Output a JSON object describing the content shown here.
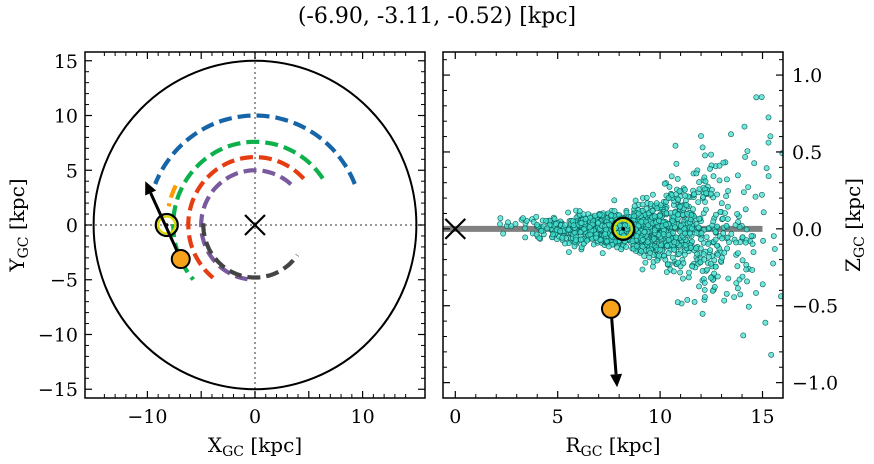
{
  "title": "(-6.90, -3.11, -0.52) [kpc]",
  "chart_data": [
    {
      "type": "line",
      "panel": "left",
      "xlabel": "X_GC [kpc]",
      "ylabel": "Y_GC [kpc]",
      "xlim": [
        -15.8,
        15.8
      ],
      "ylim": [
        -15.8,
        15.8
      ],
      "xticks": [
        -10,
        -5,
        0,
        5,
        10
      ],
      "yticks": [
        -15,
        -10,
        -5,
        0,
        5,
        10,
        15
      ],
      "xtick_labels": [
        "−10",
        "0",
        "10"
      ],
      "xtick_label_values": [
        -10,
        0,
        10
      ],
      "ytick_labels": [
        "−15",
        "−10",
        "−5",
        "0",
        "5",
        "10",
        "15"
      ],
      "boundary_circle_radius": 15,
      "galactic_center": [
        0,
        0
      ],
      "sun": [
        -8.2,
        0
      ],
      "object": [
        -6.9,
        -3.11
      ],
      "velocity_arrow_end": [
        -10.2,
        4.0
      ],
      "spiral_arms": [
        {
          "color": "#1565a8",
          "r": 10.0,
          "theta_deg": [
            22,
            158
          ]
        },
        {
          "color": "#0db14b",
          "r": 7.6,
          "theta_deg": [
            34,
            221
          ]
        },
        {
          "color": "#e63c12",
          "r": 6.2,
          "theta_deg": [
            43,
            231
          ]
        },
        {
          "color": "#ff9a00",
          "r": 8.2,
          "theta_deg": [
            154,
            168
          ]
        },
        {
          "color": "#7a5a9e",
          "r": 5.0,
          "theta_deg": [
            48,
            262
          ]
        },
        {
          "color": "#444444",
          "r": 4.8,
          "theta_deg": [
            178,
            325
          ]
        }
      ],
      "grid": false
    },
    {
      "type": "scatter",
      "panel": "right",
      "xlabel": "R_GC [kpc]",
      "ylabel": "Z_GC [kpc]",
      "xlim": [
        -0.6,
        16
      ],
      "ylim": [
        -1.1,
        1.15
      ],
      "xticks": [
        0,
        5,
        10,
        15
      ],
      "yticks": [
        -1.0,
        -0.5,
        0.0,
        0.5,
        1.0
      ],
      "ytick_labels": [
        "−1.0",
        "−0.5",
        "0.0",
        "0.5",
        "1.0"
      ],
      "disk_line": {
        "x": [
          -0.6,
          15
        ],
        "y": 0
      },
      "galactic_center": [
        0,
        0
      ],
      "sun": [
        8.2,
        0
      ],
      "object": [
        7.6,
        -0.52
      ],
      "velocity_arrow_end": [
        7.9,
        -1.03
      ],
      "scatter_color": "#40e0d0",
      "scatter_stars": {
        "n": 1500,
        "center_r": 8.5,
        "r_min": 1.5,
        "r_max": 16,
        "z_scale_at_sun": 0.05,
        "z_flare_scale_at_15kpc": 0.35
      },
      "grid": false
    }
  ]
}
